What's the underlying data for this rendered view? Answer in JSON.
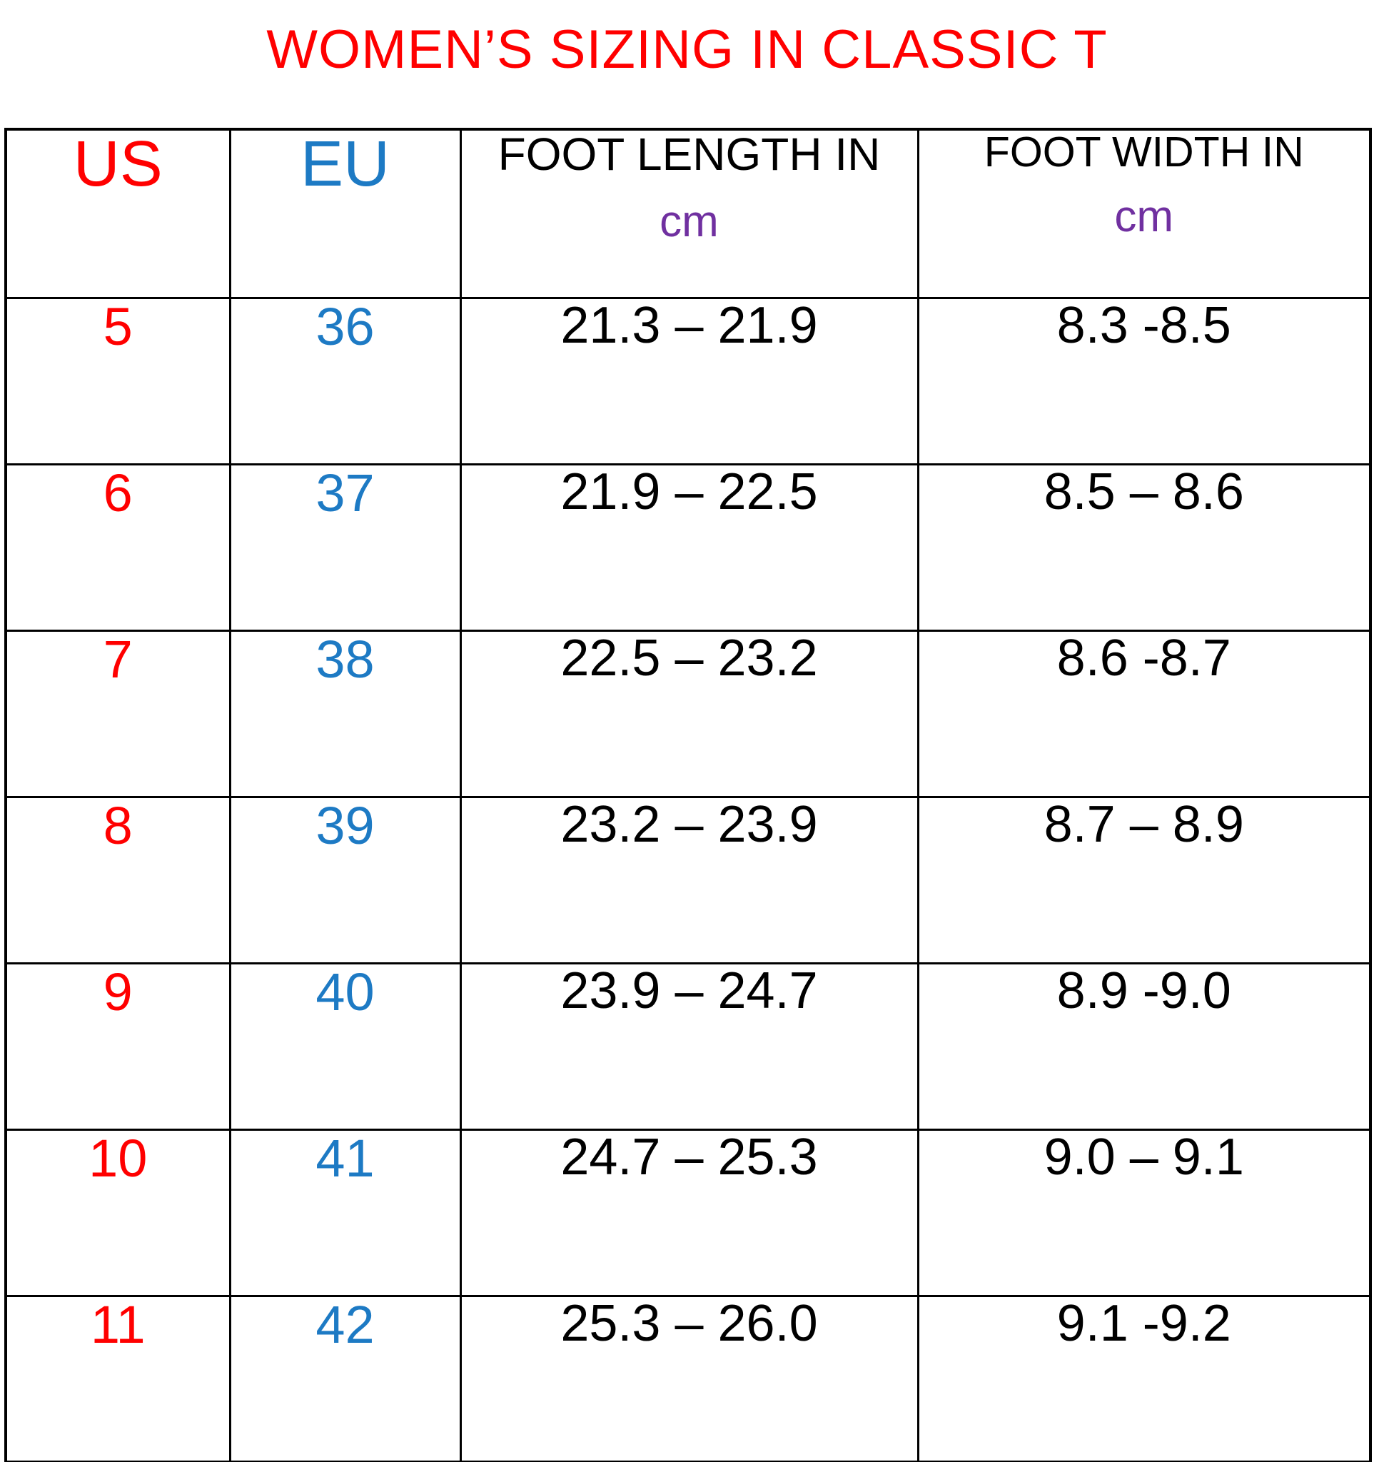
{
  "title": {
    "text": "WOMEN’S SIZING IN CLASSIC T"
  },
  "colors": {
    "title_red": "#ff0000",
    "us_red": "#ff0000",
    "eu_blue": "#1d7ac4",
    "unit_purple": "#7030a0",
    "text_black": "#000000",
    "border_black": "#000000",
    "background": "#ffffff"
  },
  "table": {
    "headers": [
      {
        "label": "US"
      },
      {
        "label": "EU"
      },
      {
        "label": "FOOT LENGTH IN",
        "unit": "cm"
      },
      {
        "label": "FOOT WIDTH IN",
        "unit": "cm"
      }
    ]
  },
  "chart_data": {
    "type": "table",
    "title": "WOMEN’S SIZING IN CLASSIC T",
    "columns": [
      "US",
      "EU",
      "FOOT LENGTH IN cm",
      "FOOT WIDTH IN cm"
    ],
    "rows": [
      [
        "5",
        "36",
        "21.3 – 21.9",
        "8.3 -8.5"
      ],
      [
        "6",
        "37",
        "21.9 – 22.5",
        "8.5 – 8.6"
      ],
      [
        "7",
        "38",
        "22.5 – 23.2",
        "8.6 -8.7"
      ],
      [
        "8",
        "39",
        "23.2 – 23.9",
        "8.7 – 8.9"
      ],
      [
        "9",
        "40",
        "23.9 – 24.7",
        "8.9 -9.0"
      ],
      [
        "10",
        "41",
        "24.7 – 25.3",
        "9.0 – 9.1"
      ],
      [
        "11",
        "42",
        "25.3 – 26.0",
        "9.1 -9.2"
      ]
    ]
  }
}
